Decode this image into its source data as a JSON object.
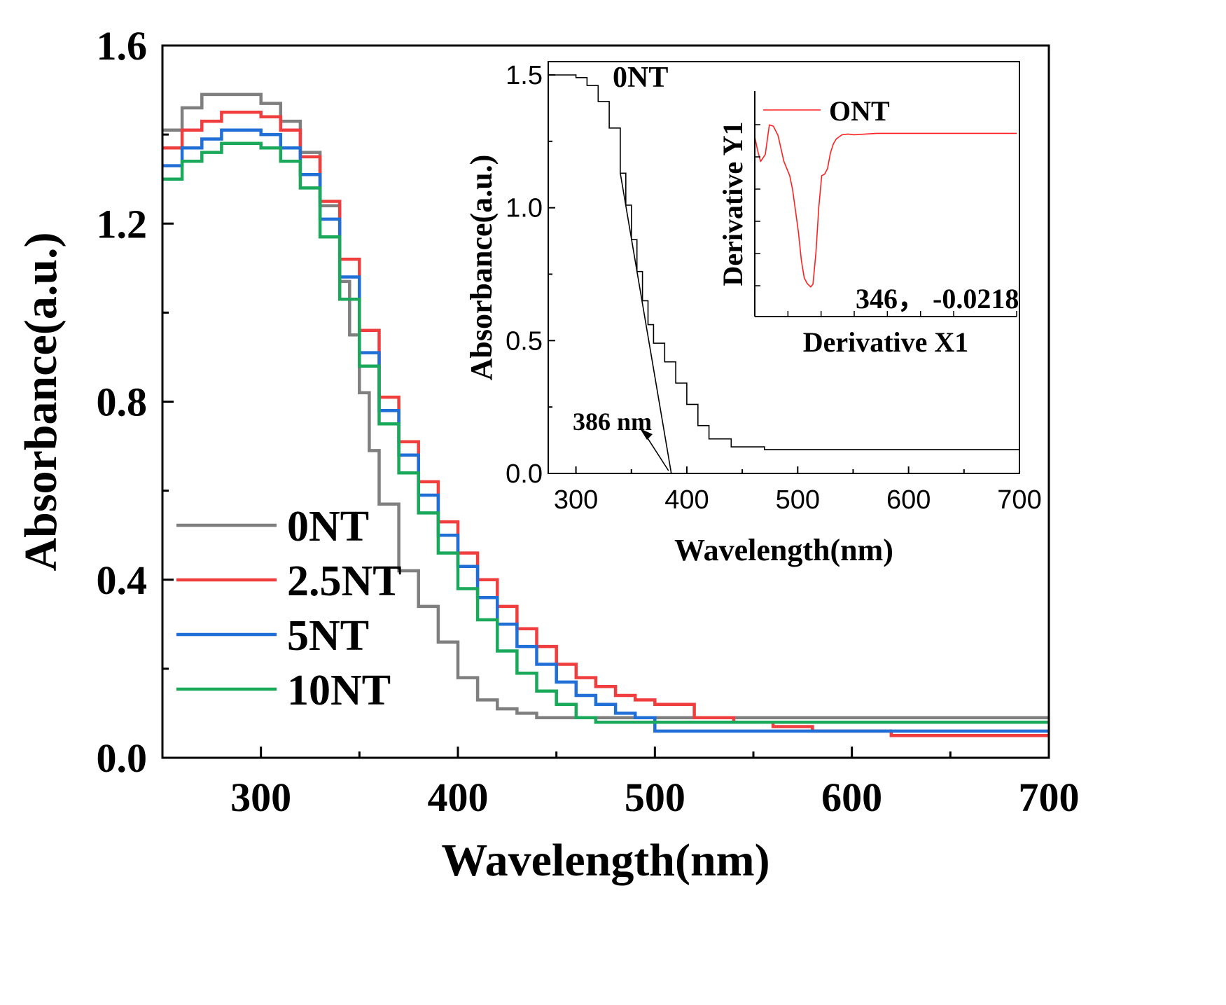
{
  "chart_data": [
    {
      "type": "line",
      "xlabel": "Wavelength(nm)",
      "ylabel": "Absorbance(a.u.)",
      "xlim": [
        250,
        700
      ],
      "ylim": [
        0.0,
        1.6
      ],
      "xticks": [
        300,
        400,
        500,
        600,
        700
      ],
      "yticks": [
        0.0,
        0.4,
        0.8,
        1.2,
        1.6
      ],
      "ytick_labels": [
        "0.0",
        "0.4",
        "0.8",
        "1.2",
        "1.6"
      ],
      "legend_position": "lower-left",
      "series": [
        {
          "name": "0NT",
          "color": "#7f7f7f",
          "x": [
            250,
            260,
            270,
            280,
            290,
            300,
            310,
            320,
            330,
            340,
            345,
            350,
            355,
            360,
            370,
            380,
            390,
            400,
            410,
            420,
            430,
            440,
            450,
            470,
            500,
            600,
            700
          ],
          "y": [
            1.41,
            1.46,
            1.49,
            1.49,
            1.49,
            1.47,
            1.43,
            1.36,
            1.24,
            1.07,
            0.95,
            0.82,
            0.69,
            0.57,
            0.42,
            0.34,
            0.26,
            0.18,
            0.13,
            0.11,
            0.1,
            0.09,
            0.09,
            0.09,
            0.09,
            0.09,
            0.09
          ]
        },
        {
          "name": "2.5NT",
          "color": "#f03e3e",
          "x": [
            250,
            260,
            270,
            280,
            290,
            300,
            310,
            320,
            330,
            340,
            350,
            360,
            370,
            380,
            390,
            400,
            410,
            420,
            430,
            440,
            450,
            460,
            470,
            480,
            490,
            500,
            520,
            540,
            560,
            580,
            620,
            700
          ],
          "y": [
            1.37,
            1.41,
            1.43,
            1.45,
            1.45,
            1.44,
            1.41,
            1.35,
            1.25,
            1.12,
            0.96,
            0.81,
            0.71,
            0.62,
            0.53,
            0.46,
            0.4,
            0.34,
            0.29,
            0.25,
            0.21,
            0.18,
            0.16,
            0.14,
            0.13,
            0.12,
            0.09,
            0.08,
            0.07,
            0.06,
            0.05,
            0.05
          ]
        },
        {
          "name": "5NT",
          "color": "#1f6fd6",
          "x": [
            250,
            260,
            270,
            280,
            290,
            300,
            310,
            320,
            330,
            340,
            350,
            360,
            370,
            380,
            390,
            400,
            410,
            420,
            430,
            440,
            450,
            460,
            470,
            480,
            490,
            500,
            600,
            700
          ],
          "y": [
            1.33,
            1.37,
            1.39,
            1.41,
            1.41,
            1.4,
            1.37,
            1.31,
            1.21,
            1.08,
            0.91,
            0.78,
            0.68,
            0.59,
            0.5,
            0.43,
            0.36,
            0.3,
            0.25,
            0.21,
            0.17,
            0.14,
            0.12,
            0.1,
            0.09,
            0.06,
            0.06,
            0.06
          ]
        },
        {
          "name": "10NT",
          "color": "#1aa85a",
          "x": [
            250,
            260,
            270,
            280,
            290,
            300,
            310,
            320,
            330,
            340,
            350,
            360,
            370,
            380,
            390,
            400,
            410,
            420,
            430,
            440,
            450,
            460,
            470,
            500,
            600,
            700
          ],
          "y": [
            1.3,
            1.34,
            1.36,
            1.38,
            1.38,
            1.37,
            1.34,
            1.28,
            1.17,
            1.03,
            0.88,
            0.75,
            0.64,
            0.55,
            0.46,
            0.38,
            0.31,
            0.24,
            0.19,
            0.15,
            0.12,
            0.09,
            0.08,
            0.08,
            0.08,
            0.08
          ]
        }
      ]
    },
    {
      "type": "line",
      "label": "0NT",
      "xlabel": "Wavelength(nm)",
      "ylabel": "Absorbance(a.u.)",
      "xlim": [
        275,
        700
      ],
      "ylim": [
        0.0,
        1.55
      ],
      "xticks": [
        300,
        400,
        500,
        600,
        700
      ],
      "yticks": [
        0.0,
        0.5,
        1.0,
        1.5
      ],
      "ytick_labels": [
        "0.0",
        "0.5",
        "1.0",
        "1.5"
      ],
      "series": [
        {
          "name": "0NT",
          "color": "#000000",
          "x": [
            275,
            290,
            300,
            310,
            320,
            330,
            340,
            345,
            350,
            355,
            360,
            365,
            370,
            380,
            390,
            400,
            410,
            420,
            440,
            470,
            500,
            700
          ],
          "y": [
            1.5,
            1.5,
            1.49,
            1.46,
            1.4,
            1.3,
            1.13,
            1.01,
            0.88,
            0.76,
            0.65,
            0.56,
            0.49,
            0.42,
            0.34,
            0.26,
            0.18,
            0.13,
            0.1,
            0.09,
            0.09,
            0.09
          ]
        }
      ],
      "tangent_line": {
        "x": [
          340,
          386
        ],
        "y": [
          1.13,
          0.0
        ]
      },
      "annotation": {
        "text": "386 nm",
        "x": 386,
        "y": 0.0
      }
    },
    {
      "type": "line",
      "xlabel": "Derivative X1",
      "ylabel": "Derivative Y1",
      "xlim": [
        250,
        700
      ],
      "ylim": [
        -0.026,
        0.006
      ],
      "series": [
        {
          "name": "ONT",
          "color": "#ff2020",
          "x": [
            250,
            255,
            260,
            268,
            275,
            282,
            290,
            300,
            310,
            315,
            320,
            325,
            330,
            335,
            340,
            346,
            350,
            355,
            360,
            365,
            370,
            375,
            380,
            385,
            390,
            395,
            400,
            410,
            420,
            440,
            460,
            480,
            500,
            700
          ],
          "y": [
            -0.0005,
            -0.0025,
            -0.004,
            -0.003,
            0.0012,
            0.001,
            -0.0003,
            -0.004,
            -0.006,
            -0.008,
            -0.011,
            -0.014,
            -0.018,
            -0.0205,
            -0.0213,
            -0.0218,
            -0.0214,
            -0.017,
            -0.0105,
            -0.006,
            -0.0058,
            -0.005,
            -0.0028,
            -0.0015,
            -0.0008,
            -0.0005,
            -0.0002,
            -0.0001,
            -0.0002,
            -0.0001,
            0.0,
            0.0,
            0.0,
            0.0
          ]
        }
      ],
      "annotation": {
        "text": "346， -0.0218",
        "x": 346,
        "y": -0.0218
      }
    }
  ]
}
